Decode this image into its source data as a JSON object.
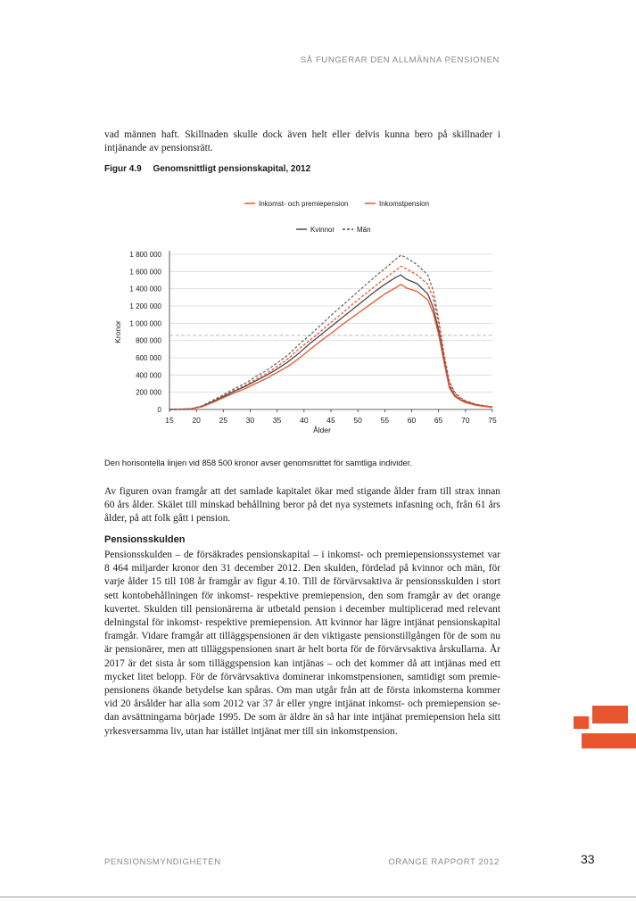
{
  "header": {
    "running_title": "SÅ FUNGERAR DEN ALLMÄNNA PENSIONEN"
  },
  "intro_text": "vad männen haft. Skillnaden skulle dock även helt eller delvis kunna bero på skillnader i intjänan­de av pensionsrätt.",
  "figure": {
    "number": "Figur 4.9",
    "title": "Genomsnittligt pensionskapital, 2012",
    "caption": "Den horisontella linjen vid 858 500 kronor avser genomsnittet för samtliga individer."
  },
  "chart_data": {
    "type": "line",
    "title": "",
    "xlabel": "Ålder",
    "ylabel": "Kronor",
    "xlim": [
      15,
      75
    ],
    "ylim": [
      0,
      1800000
    ],
    "x_ticks": [
      15,
      20,
      25,
      30,
      35,
      40,
      45,
      50,
      55,
      60,
      65,
      70,
      75
    ],
    "y_ticks": [
      0,
      200000,
      400000,
      600000,
      800000,
      1000000,
      1200000,
      1400000,
      1600000,
      1800000
    ],
    "y_tick_labels": [
      "0",
      "200 000",
      "400 000",
      "600 000",
      "800 000",
      "1 000 000",
      "1 200 000",
      "1 400 000",
      "1 600 000",
      "1 800 000"
    ],
    "grid": "horizontal",
    "legend_placement": "top-center",
    "legend_color": {
      "items": [
        {
          "label": "Inkomst- och premiepension",
          "color": "#e8552e"
        },
        {
          "label": "Inkomstpension",
          "color": "#e8552e"
        }
      ]
    },
    "legend_style": {
      "items": [
        {
          "label": "Kvinnor",
          "color": "#4a4a4a",
          "dash": "solid"
        },
        {
          "label": "Män",
          "color": "#4a4a4a",
          "dash": "dashed"
        }
      ]
    },
    "reference_line": {
      "y": 858500,
      "color": "#bbbbbb"
    },
    "x": [
      15,
      17,
      19,
      21,
      23,
      25,
      27,
      29,
      31,
      33,
      35,
      37,
      39,
      41,
      43,
      45,
      47,
      49,
      51,
      53,
      55,
      57,
      58,
      59,
      61,
      63,
      64,
      65,
      66,
      67,
      68,
      69,
      70,
      72,
      75
    ],
    "series": [
      {
        "name": "Män, inkomst- och premiepension",
        "color": "#6b6b6b",
        "dash": "dashed",
        "values": [
          0,
          3000,
          8000,
          40000,
          105000,
          170000,
          240000,
          300000,
          380000,
          450000,
          540000,
          630000,
          750000,
          860000,
          970000,
          1090000,
          1200000,
          1310000,
          1420000,
          1530000,
          1630000,
          1740000,
          1790000,
          1760000,
          1680000,
          1560000,
          1380000,
          1050000,
          650000,
          330000,
          200000,
          140000,
          100000,
          60000,
          30000
        ]
      },
      {
        "name": "Män, inkomstpension",
        "color": "#e8552e",
        "dash": "dashed",
        "values": [
          0,
          2000,
          7000,
          35000,
          95000,
          155000,
          220000,
          275000,
          350000,
          415000,
          500000,
          585000,
          700000,
          800000,
          900000,
          1010000,
          1110000,
          1220000,
          1320000,
          1420000,
          1520000,
          1610000,
          1660000,
          1630000,
          1560000,
          1450000,
          1290000,
          990000,
          620000,
          300000,
          185000,
          130000,
          95000,
          55000,
          28000
        ]
      },
      {
        "name": "Kvinnor, inkomst- och premiepension",
        "color": "#4a4a4a",
        "dash": "solid",
        "values": [
          0,
          2000,
          7000,
          35000,
          90000,
          150000,
          210000,
          265000,
          330000,
          395000,
          470000,
          550000,
          650000,
          760000,
          860000,
          960000,
          1060000,
          1160000,
          1260000,
          1360000,
          1450000,
          1530000,
          1560000,
          1510000,
          1460000,
          1340000,
          1180000,
          920000,
          580000,
          270000,
          160000,
          115000,
          85000,
          50000,
          25000
        ]
      },
      {
        "name": "Kvinnor, inkomstpension",
        "color": "#e8552e",
        "dash": "solid",
        "values": [
          0,
          1500,
          6000,
          30000,
          80000,
          135000,
          190000,
          240000,
          300000,
          360000,
          430000,
          500000,
          590000,
          690000,
          790000,
          880000,
          980000,
          1070000,
          1160000,
          1250000,
          1340000,
          1410000,
          1450000,
          1410000,
          1370000,
          1270000,
          1120000,
          870000,
          550000,
          250000,
          150000,
          110000,
          80000,
          48000,
          24000
        ]
      }
    ]
  },
  "paragraph_1": "Av figuren ovan framgår att det samlade kapitalet ökar med stigande ålder fram till strax innan 60 års ålder. Skälet till minskad behållning beror på det nya systemets infasning och, från 61 års ålder, på att folk gått i pension.",
  "section": {
    "heading": "Pensionsskulden",
    "paragraph": "Pensionsskulden – de försäkrades pensionskapital – i inkomst- och premiepensionssystemet var 8 464 miljarder kronor den 31 december 2012. Den skulden, fördelad på kvinnor och män, för varje ålder 15 till 108 år framgår av figur 4.10. Till de förvärvsaktiva är pensionsskulden i stort sett kontobehållningen för inkomst- respektive premiepension, den som framgår av det orange kuvertet. Skulden till pensionärerna är utbetald pension i december multiplicerad med relevant delningstal för inkomst- respektive premiepension. Att kvinnor har lägre intjänat pensionskapital framgår. Vidare framgår att tilläggspensionen är den viktigaste pensionstillgången för de som nu är pensionärer, men att tilläggspensionen snart är helt borta för de förvärvsaktiva årskullarna. År 2017 är det sista år som tilläggspension kan intjänas – och det kommer då att intjänas med ett mycket litet belopp. För de förvärvsaktiva dominerar inkomstpensionen, samtidigt som premie­pensionens ökande betydelse kan spåras. Om man utgår från att de första inkomsterna kommer vid 20 årsålder har alla som 2012 var 37 år eller yngre intjänat inkomst- och premiepension se­dan avsättningarna började 1995. De som är äldre än så har inte intjänat premiepension hela sitt yrkesversamma liv, utan har istället intjänat mer till sin inkomstpension."
  },
  "footer": {
    "publisher": "PENSIONSMYNDIGHETEN",
    "report": "ORANGE RAPPORT 2012",
    "page_number": "33"
  },
  "accent_color": "#e8552e"
}
